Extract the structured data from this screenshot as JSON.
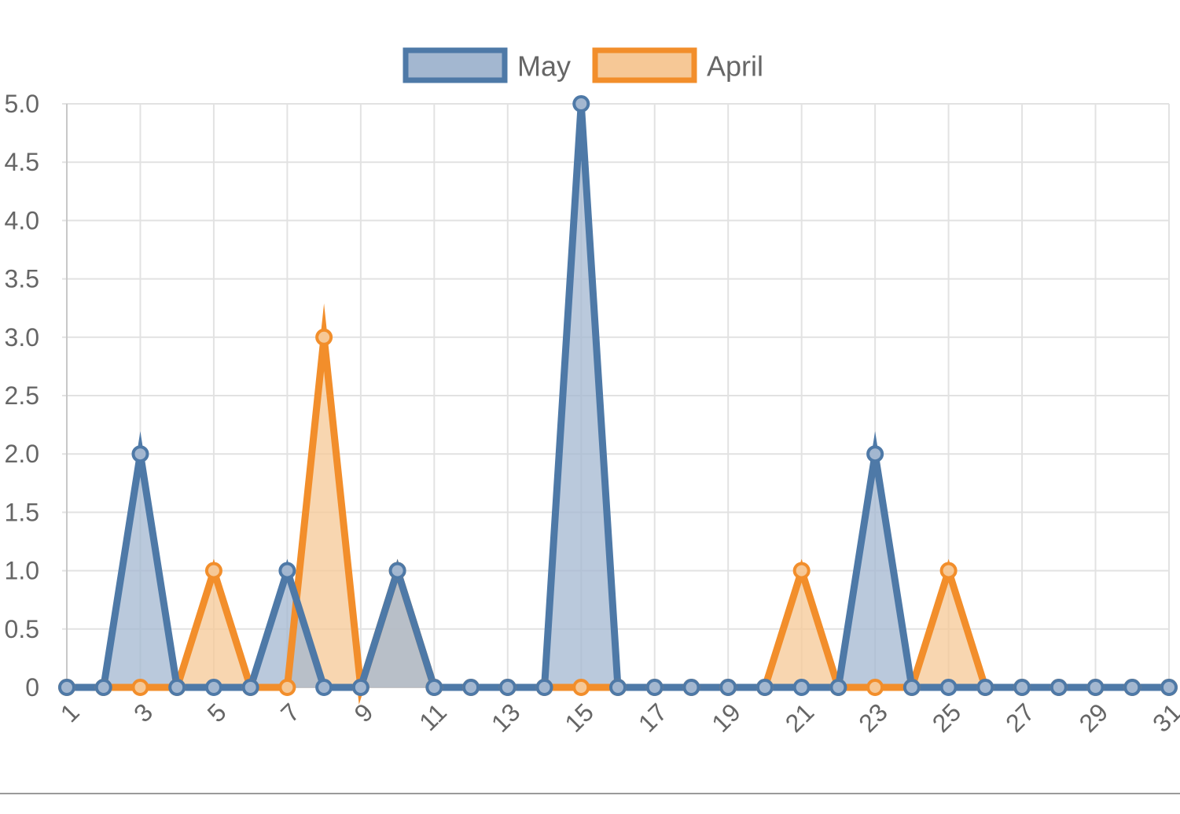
{
  "chart_data": {
    "type": "area",
    "x": [
      "1",
      "2",
      "3",
      "4",
      "5",
      "6",
      "7",
      "8",
      "9",
      "10",
      "11",
      "12",
      "13",
      "14",
      "15",
      "16",
      "17",
      "18",
      "19",
      "20",
      "21",
      "22",
      "23",
      "24",
      "25",
      "26",
      "27",
      "28",
      "29",
      "30",
      "31"
    ],
    "x_tick_labels": [
      "1",
      "3",
      "5",
      "7",
      "9",
      "11",
      "13",
      "15",
      "17",
      "19",
      "21",
      "23",
      "25",
      "27",
      "29",
      "31"
    ],
    "y_tick_labels": [
      "0",
      "0.5",
      "1.0",
      "1.5",
      "2.0",
      "2.5",
      "3.0",
      "3.5",
      "4.0",
      "4.5",
      "5.0"
    ],
    "ylim": [
      0,
      5
    ],
    "grid": true,
    "legend_position": "top-center",
    "series": [
      {
        "name": "May",
        "line_color": "#4e79a7",
        "fill_color": "#a3b7d0",
        "values": [
          0,
          0,
          2,
          0,
          0,
          0,
          1,
          0,
          0,
          1,
          0,
          0,
          0,
          0,
          5,
          0,
          0,
          0,
          0,
          0,
          0,
          0,
          2,
          0,
          0,
          0,
          0,
          0,
          0,
          0,
          0
        ]
      },
      {
        "name": "April",
        "line_color": "#f28e2b",
        "fill_color": "#f6c896",
        "values": [
          0,
          0,
          0,
          0,
          1,
          0,
          0,
          3,
          0,
          1,
          0,
          0,
          0,
          0,
          0,
          0,
          0,
          0,
          0,
          0,
          1,
          0,
          0,
          0,
          1,
          0,
          0,
          0,
          0,
          0,
          0
        ]
      }
    ]
  }
}
